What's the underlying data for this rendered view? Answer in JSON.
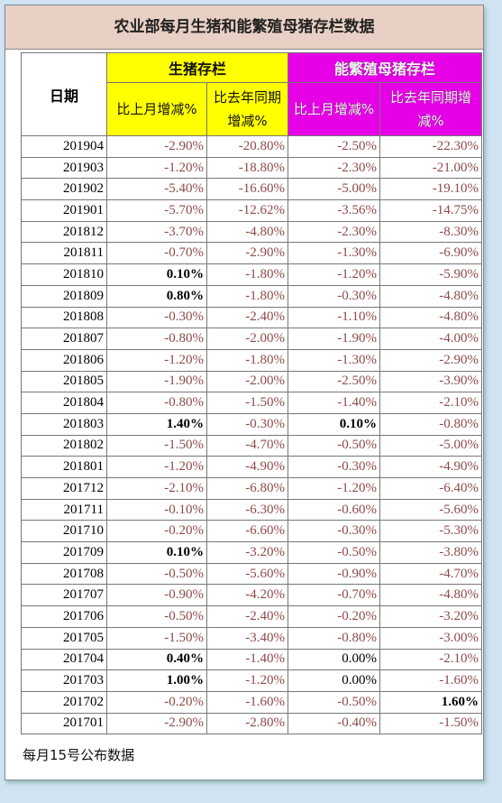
{
  "header": {
    "title": "农业部每月生猪和能繁殖母猪存栏数据"
  },
  "table": {
    "date_header": "日期",
    "groups": [
      "生猪存栏",
      "能繁殖母猪存栏"
    ],
    "columns": [
      "比上月增减%",
      "比去年同期增减%",
      "比上月增减%",
      "比去年同期增减%"
    ],
    "rows": [
      [
        "201904",
        "-2.90%",
        "-20.80%",
        "-2.50%",
        "-22.30%"
      ],
      [
        "201903",
        "-1.20%",
        "-18.80%",
        "-2.30%",
        "-21.00%"
      ],
      [
        "201902",
        "-5.40%",
        "-16.60%",
        "-5.00%",
        "-19.10%"
      ],
      [
        "201901",
        "-5.70%",
        "-12.62%",
        "-3.56%",
        "-14.75%"
      ],
      [
        "201812",
        "-3.70%",
        "-4.80%",
        "-2.30%",
        "-8.30%"
      ],
      [
        "201811",
        "-0.70%",
        "-2.90%",
        "-1.30%",
        "-6.90%"
      ],
      [
        "201810",
        "0.10%",
        "-1.80%",
        "-1.20%",
        "-5.90%"
      ],
      [
        "201809",
        "0.80%",
        "-1.80%",
        "-0.30%",
        "-4.80%"
      ],
      [
        "201808",
        "-0.30%",
        "-2.40%",
        "-1.10%",
        "-4.80%"
      ],
      [
        "201807",
        "-0.80%",
        "-2.00%",
        "-1.90%",
        "-4.00%"
      ],
      [
        "201806",
        "-1.20%",
        "-1.80%",
        "-1.30%",
        "-2.90%"
      ],
      [
        "201805",
        "-1.90%",
        "-2.00%",
        "-2.50%",
        "-3.90%"
      ],
      [
        "201804",
        "-0.80%",
        "-1.50%",
        "-1.40%",
        "-2.10%"
      ],
      [
        "201803",
        "1.40%",
        "-0.30%",
        "0.10%",
        "-0.80%"
      ],
      [
        "201802",
        "-1.50%",
        "-4.70%",
        "-0.50%",
        "-5.00%"
      ],
      [
        "201801",
        "-1.20%",
        "-4.90%",
        "-0.30%",
        "-4.90%"
      ],
      [
        "201712",
        "-2.10%",
        "-6.80%",
        "-1.20%",
        "-6.40%"
      ],
      [
        "201711",
        "-0.10%",
        "-6.30%",
        "-0.60%",
        "-5.60%"
      ],
      [
        "201710",
        "-0.20%",
        "-6.60%",
        "-0.30%",
        "-5.30%"
      ],
      [
        "201709",
        "0.10%",
        "-3.20%",
        "-0.50%",
        "-3.80%"
      ],
      [
        "201708",
        "-0.50%",
        "-5.60%",
        "-0.90%",
        "-4.70%"
      ],
      [
        "201707",
        "-0.90%",
        "-4.20%",
        "-0.70%",
        "-4.80%"
      ],
      [
        "201706",
        "-0.50%",
        "-2.40%",
        "-0.20%",
        "-3.20%"
      ],
      [
        "201705",
        "-1.50%",
        "-3.40%",
        "-0.80%",
        "-3.00%"
      ],
      [
        "201704",
        "0.40%",
        "-1.40%",
        "0.00%",
        "-2.10%"
      ],
      [
        "201703",
        "1.00%",
        "-1.20%",
        "0.00%",
        "-1.60%"
      ],
      [
        "201702",
        "-0.20%",
        "-1.60%",
        "-0.50%",
        "1.60%"
      ],
      [
        "201701",
        "-2.90%",
        "-2.80%",
        "-0.40%",
        "-1.50%"
      ]
    ]
  },
  "footer": {
    "note": "每月15号公布数据"
  }
}
